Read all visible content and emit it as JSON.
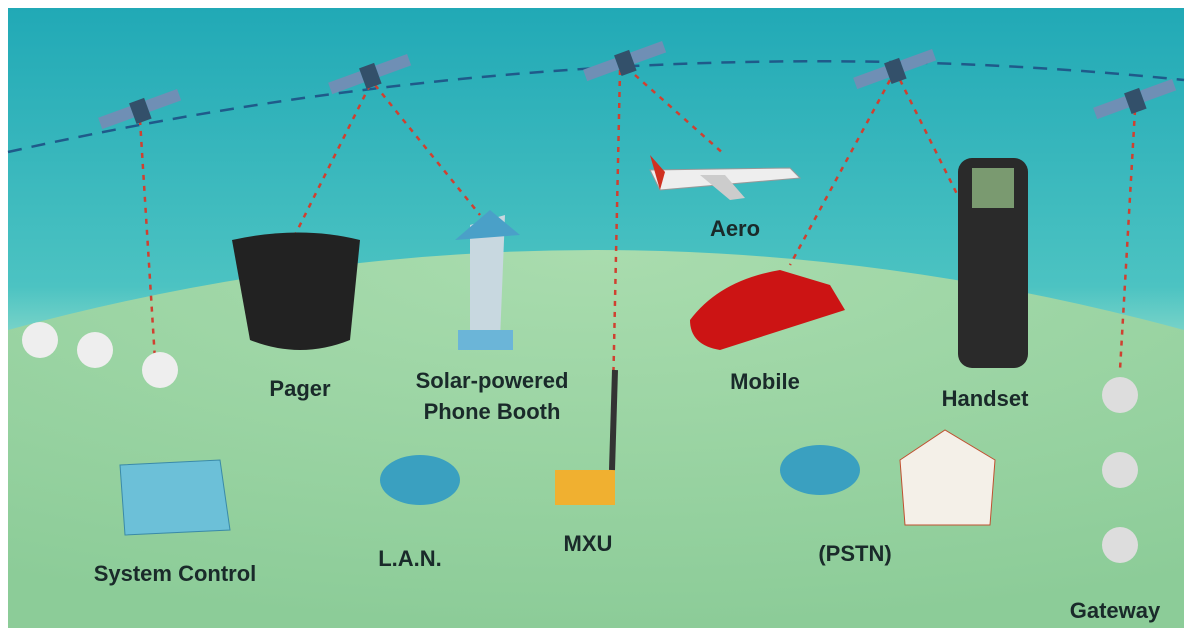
{
  "nodes": [
    {
      "label": "Aero"
    },
    {
      "label": "Pager"
    },
    {
      "label": [
        "Solar-powered",
        "Phone Booth"
      ]
    },
    {
      "label": "Mobile"
    },
    {
      "label": "Handset"
    },
    {
      "label": "System Control"
    },
    {
      "label": "L.A.N."
    },
    {
      "label": "MXU"
    },
    {
      "label": "(PSTN)"
    },
    {
      "label": "Gateway"
    }
  ]
}
